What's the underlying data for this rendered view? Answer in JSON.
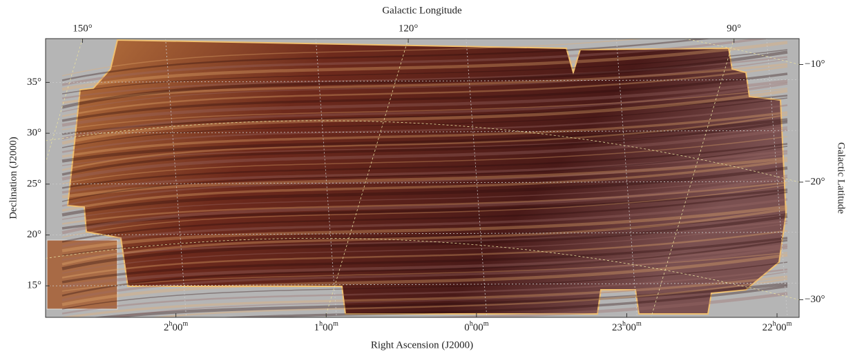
{
  "axes": {
    "bottom": {
      "label": "Right Ascension (J2000)",
      "lim": [
        2.867,
        -2.147
      ],
      "ticks": [
        {
          "value": 2,
          "label": "2h00m"
        },
        {
          "value": 1,
          "label": "1h00m"
        },
        {
          "value": 0,
          "label": "0h00m"
        },
        {
          "value": -1,
          "label": "23h00m"
        },
        {
          "value": -2,
          "label": "22h00m"
        }
      ]
    },
    "left": {
      "label": "Declination (J2000)",
      "lim": [
        11.9,
        39.3
      ],
      "ticks": [
        {
          "value": 15,
          "label": "15°"
        },
        {
          "value": 20,
          "label": "20°"
        },
        {
          "value": 25,
          "label": "25°"
        },
        {
          "value": 30,
          "label": "30°"
        },
        {
          "value": 35,
          "label": "35°"
        }
      ]
    },
    "top": {
      "label": "Galactic Longitude",
      "lim": [
        153.4,
        84.0
      ],
      "ticks": [
        {
          "value": 150,
          "label": "150°"
        },
        {
          "value": 120,
          "label": "120°"
        },
        {
          "value": 90,
          "label": "90°"
        }
      ]
    },
    "right": {
      "label": "Galactic Latitude",
      "lim": [
        -31.5,
        -7.8
      ],
      "ticks": [
        {
          "value": -10,
          "label": "−10°"
        },
        {
          "value": -20,
          "label": "−20°"
        },
        {
          "value": -30,
          "label": "−30°"
        }
      ]
    }
  }
}
